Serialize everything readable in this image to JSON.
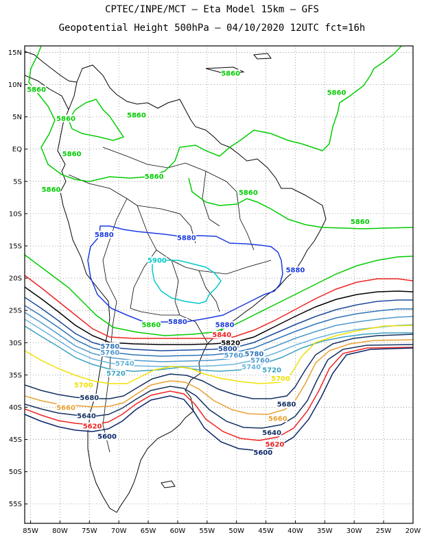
{
  "header": {
    "line1": "CPTEC/INPE/MCT –  Eta Model 15km – GFS",
    "line2": "Geopotential Height 500hPa – 04/10/2020 12UTC fct=16h"
  },
  "axes": {
    "lat_labels": [
      "15N",
      "10N",
      "5N",
      "EQ",
      "5S",
      "10S",
      "15S",
      "20S",
      "25S",
      "30S",
      "35S",
      "40S",
      "45S",
      "50S",
      "55S"
    ],
    "lon_labels": [
      "85W",
      "80W",
      "75W",
      "70W",
      "65W",
      "60W",
      "55W",
      "50W",
      "45W",
      "40W",
      "35W",
      "30W",
      "25W",
      "20W"
    ],
    "lat_range": [
      -58,
      16
    ],
    "lon_range": [
      -86,
      -20
    ],
    "grid": "dotted"
  },
  "colors": {
    "5860": "#00cc00",
    "5880": "#1a3ae0",
    "5900": "#00c8c8",
    "5840": "#ee2222",
    "5820": "#000000",
    "5800": "#1d4a9a",
    "5780": "#2f74b8",
    "5760": "#4f98cc",
    "5740": "#68b4dc",
    "5720": "#3aa0c0",
    "5700": "#f0e000",
    "5680": "#123060",
    "5660": "#e8a030",
    "5640": "#123060",
    "5620": "#ee2222",
    "5600": "#0a2468",
    "land": "#000000"
  },
  "contour_labels": [
    {
      "text": "5860",
      "lon": -84.0,
      "lat": 9.0
    },
    {
      "text": "5860",
      "lon": -79.0,
      "lat": 4.5
    },
    {
      "text": "5860",
      "lon": -67.0,
      "lat": 5.0
    },
    {
      "text": "5860",
      "lon": -78.0,
      "lat": -1.0
    },
    {
      "text": "5860",
      "lon": -81.5,
      "lat": -6.5
    },
    {
      "text": "5860",
      "lon": -64.0,
      "lat": -4.5
    },
    {
      "text": "5860",
      "lon": -51.0,
      "lat": 11.5
    },
    {
      "text": "5860",
      "lon": -33.0,
      "lat": 8.5
    },
    {
      "text": "5860",
      "lon": -48.0,
      "lat": -7.0
    },
    {
      "text": "5860",
      "lon": -29.0,
      "lat": -11.5
    },
    {
      "text": "5880",
      "lon": -72.5,
      "lat": -13.5
    },
    {
      "text": "5880",
      "lon": -58.5,
      "lat": -14.0
    },
    {
      "text": "5880",
      "lon": -40.0,
      "lat": -19.0
    },
    {
      "text": "5900",
      "lon": -63.5,
      "lat": -17.5
    },
    {
      "text": "5860",
      "lon": -64.5,
      "lat": -27.5
    },
    {
      "text": "5880",
      "lon": -60.0,
      "lat": -27.0
    },
    {
      "text": "5880",
      "lon": -52.0,
      "lat": -27.5
    },
    {
      "text": "5840",
      "lon": -52.5,
      "lat": -29.0
    },
    {
      "text": "5820",
      "lon": -51.0,
      "lat": -30.3
    },
    {
      "text": "5800",
      "lon": -51.5,
      "lat": -31.2
    },
    {
      "text": "5780",
      "lon": -71.5,
      "lat": -30.8
    },
    {
      "text": "5760",
      "lon": -71.5,
      "lat": -31.8
    },
    {
      "text": "5780",
      "lon": -47.0,
      "lat": -32.0
    },
    {
      "text": "5760",
      "lon": -50.5,
      "lat": -32.2
    },
    {
      "text": "5760",
      "lon": -46.0,
      "lat": -33.0
    },
    {
      "text": "5740",
      "lon": -69.0,
      "lat": -33.5
    },
    {
      "text": "5740",
      "lon": -47.5,
      "lat": -34.0
    },
    {
      "text": "5720",
      "lon": -70.5,
      "lat": -35.0
    },
    {
      "text": "5720",
      "lon": -44.0,
      "lat": -34.5
    },
    {
      "text": "5700",
      "lon": -76.0,
      "lat": -36.8
    },
    {
      "text": "5700",
      "lon": -42.5,
      "lat": -35.8
    },
    {
      "text": "5680",
      "lon": -75.0,
      "lat": -38.8
    },
    {
      "text": "5660",
      "lon": -79.0,
      "lat": -40.3
    },
    {
      "text": "5640",
      "lon": -75.5,
      "lat": -41.6
    },
    {
      "text": "5620",
      "lon": -74.5,
      "lat": -43.2
    },
    {
      "text": "5600",
      "lon": -72.0,
      "lat": -44.8
    },
    {
      "text": "5680",
      "lon": -41.5,
      "lat": -39.8
    },
    {
      "text": "5660",
      "lon": -43.0,
      "lat": -42.0
    },
    {
      "text": "5640",
      "lon": -44.0,
      "lat": -44.2
    },
    {
      "text": "5620",
      "lon": -43.5,
      "lat": -46.0
    },
    {
      "text": "5600",
      "lon": -45.5,
      "lat": -47.3
    }
  ]
}
